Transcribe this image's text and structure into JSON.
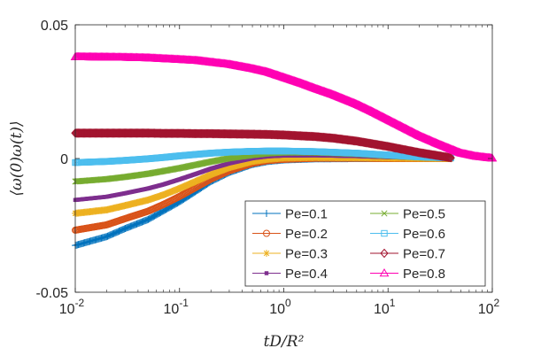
{
  "chart_data": {
    "type": "line",
    "x_scale": "log",
    "xlim": [
      0.01,
      100
    ],
    "ylim": [
      -0.05,
      0.05
    ],
    "xlabel": "tD/R²",
    "ylabel": "⟨ω(0)ω(t)⟩",
    "x_ticks": [
      {
        "value": 0.01,
        "base": "10",
        "exp": "-2"
      },
      {
        "value": 0.1,
        "base": "10",
        "exp": "-1"
      },
      {
        "value": 1,
        "base": "10",
        "exp": "0"
      },
      {
        "value": 10,
        "base": "10",
        "exp": "1"
      },
      {
        "value": 100,
        "base": "10",
        "exp": "2"
      }
    ],
    "y_ticks": [
      {
        "value": -0.05,
        "label": "-0.05"
      },
      {
        "value": 0,
        "label": "0"
      },
      {
        "value": 0.05,
        "label": "0.05"
      }
    ],
    "legend_position": "bottom-right",
    "legend_columns": 2,
    "series": [
      {
        "name": "Pe=0.1",
        "color": "#0072BD",
        "marker": "plus",
        "x": [
          0.01,
          0.02,
          0.03,
          0.05,
          0.07,
          0.1,
          0.15,
          0.2,
          0.3,
          0.5,
          0.7,
          1,
          2,
          5,
          10,
          20,
          40
        ],
        "y": [
          -0.0325,
          -0.0292,
          -0.0262,
          -0.0228,
          -0.0196,
          -0.0162,
          -0.0118,
          -0.0086,
          -0.0052,
          -0.0022,
          -0.0011,
          -0.0005,
          -0.0001,
          0,
          0,
          0,
          0
        ]
      },
      {
        "name": "Pe=0.2",
        "color": "#D95319",
        "marker": "circle",
        "x": [
          0.01,
          0.02,
          0.03,
          0.05,
          0.07,
          0.1,
          0.15,
          0.2,
          0.3,
          0.5,
          0.7,
          1,
          2,
          5,
          10,
          20,
          40
        ],
        "y": [
          -0.0268,
          -0.0248,
          -0.0225,
          -0.0197,
          -0.0172,
          -0.0142,
          -0.0104,
          -0.0077,
          -0.0046,
          -0.0018,
          -0.0008,
          -0.0003,
          0.0001,
          0.0001,
          0,
          0,
          0
        ]
      },
      {
        "name": "Pe=0.3",
        "color": "#EDB120",
        "marker": "asterisk",
        "x": [
          0.01,
          0.02,
          0.03,
          0.05,
          0.07,
          0.1,
          0.15,
          0.2,
          0.3,
          0.5,
          0.7,
          1,
          2,
          5,
          10,
          20,
          40
        ],
        "y": [
          -0.0205,
          -0.0192,
          -0.0176,
          -0.0155,
          -0.0136,
          -0.0112,
          -0.0082,
          -0.006,
          -0.0034,
          -0.0011,
          -0.0003,
          0.0002,
          0.0004,
          0.0003,
          0.0002,
          0.0001,
          0
        ]
      },
      {
        "name": "Pe=0.4",
        "color": "#7E2F8E",
        "marker": "square-filled",
        "x": [
          0.01,
          0.02,
          0.03,
          0.05,
          0.07,
          0.1,
          0.15,
          0.2,
          0.3,
          0.5,
          0.7,
          1,
          2,
          5,
          10,
          20,
          40
        ],
        "y": [
          -0.0155,
          -0.0143,
          -0.013,
          -0.0112,
          -0.0097,
          -0.0078,
          -0.0055,
          -0.0038,
          -0.0018,
          0.0001,
          0.0008,
          0.0011,
          0.0012,
          0.0009,
          0.0005,
          0.0002,
          0
        ]
      },
      {
        "name": "Pe=0.5",
        "color": "#77AC30",
        "marker": "x",
        "x": [
          0.01,
          0.02,
          0.03,
          0.05,
          0.07,
          0.1,
          0.15,
          0.2,
          0.3,
          0.5,
          0.7,
          1,
          2,
          5,
          10,
          20,
          40
        ],
        "y": [
          -0.0086,
          -0.0077,
          -0.0069,
          -0.0057,
          -0.0047,
          -0.0036,
          -0.0022,
          -0.0012,
          0.0001,
          0.0013,
          0.0019,
          0.0022,
          0.0022,
          0.0017,
          0.001,
          0.0004,
          0.0001
        ]
      },
      {
        "name": "Pe=0.6",
        "color": "#4DBEEE",
        "marker": "square",
        "x": [
          0.01,
          0.02,
          0.03,
          0.05,
          0.07,
          0.1,
          0.15,
          0.2,
          0.3,
          0.5,
          0.7,
          1,
          2,
          5,
          10,
          20,
          40
        ],
        "y": [
          -0.0015,
          -0.0011,
          -0.0007,
          -0.0001,
          0.0004,
          0.001,
          0.0016,
          0.002,
          0.0024,
          0.0027,
          0.0028,
          0.0028,
          0.0026,
          0.002,
          0.0013,
          0.0006,
          0.0002
        ]
      },
      {
        "name": "Pe=0.7",
        "color": "#A2142F",
        "marker": "diamond",
        "x": [
          0.01,
          0.02,
          0.03,
          0.05,
          0.07,
          0.1,
          0.15,
          0.2,
          0.3,
          0.5,
          0.7,
          1,
          2,
          3,
          5,
          10,
          20,
          40
        ],
        "y": [
          0.0095,
          0.0095,
          0.0095,
          0.0095,
          0.0094,
          0.0094,
          0.0093,
          0.0093,
          0.0092,
          0.0091,
          0.009,
          0.0088,
          0.0082,
          0.0076,
          0.0065,
          0.0045,
          0.0022,
          0.0003
        ]
      },
      {
        "name": "Pe=0.8",
        "color": "#FF00B3",
        "marker": "triangle",
        "x": [
          0.01,
          0.02,
          0.03,
          0.05,
          0.07,
          0.1,
          0.15,
          0.2,
          0.3,
          0.5,
          0.7,
          1,
          1.5,
          2,
          3,
          5,
          7,
          10,
          15,
          20,
          30,
          50,
          70,
          100
        ],
        "y": [
          0.038,
          0.0379,
          0.0378,
          0.0376,
          0.0373,
          0.037,
          0.0366,
          0.036,
          0.0352,
          0.0336,
          0.0323,
          0.0303,
          0.028,
          0.0262,
          0.0238,
          0.0203,
          0.0176,
          0.0145,
          0.011,
          0.0085,
          0.0055,
          0.002,
          0.0008,
          0.0001
        ]
      }
    ]
  }
}
